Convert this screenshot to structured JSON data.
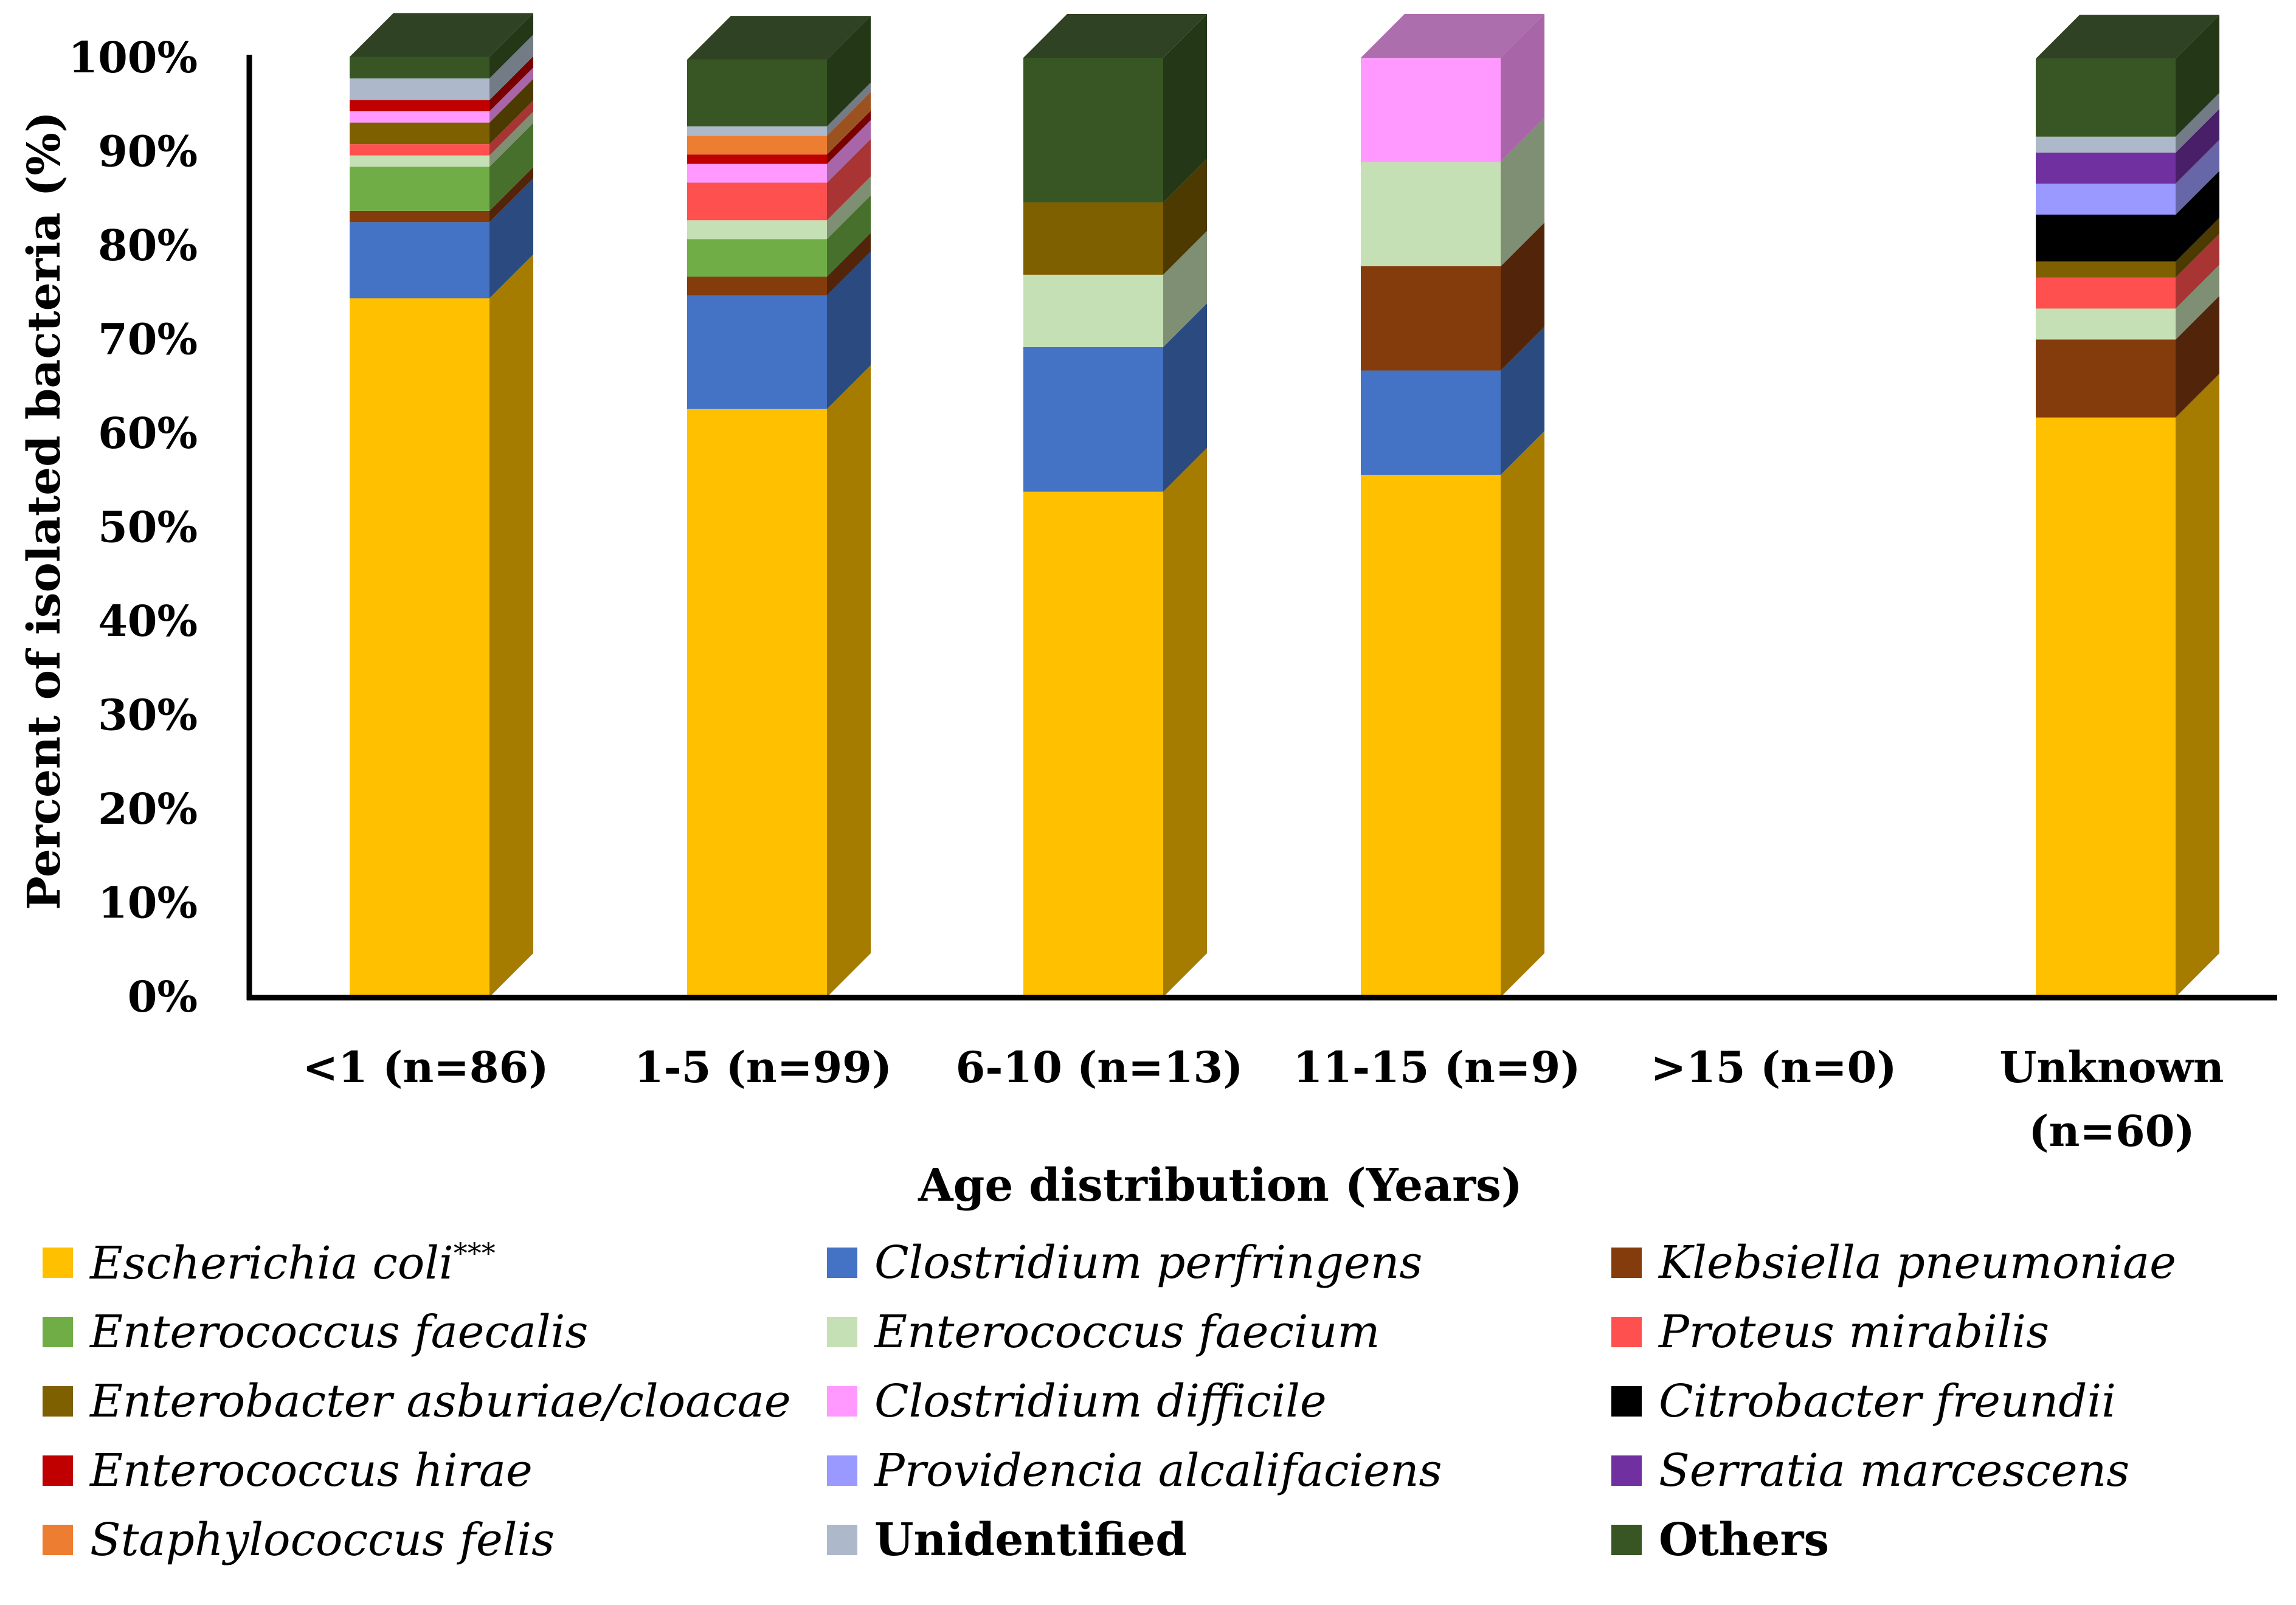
{
  "chart_data": {
    "type": "bar",
    "stacked": true,
    "percent": true,
    "title": "",
    "xlabel": "Age distribution  (Years)",
    "ylabel": "Percent of isolated bacteria (%)",
    "ylim": [
      0,
      100
    ],
    "yticks": [
      "0%",
      "10%",
      "20%",
      "30%",
      "40%",
      "50%",
      "60%",
      "70%",
      "80%",
      "90%",
      "100%"
    ],
    "categories": [
      {
        "line1": "<1 (n=86)",
        "line2": ""
      },
      {
        "line1": "1-5 (n=99)",
        "line2": ""
      },
      {
        "line1": "6-10 (n=13)",
        "line2": ""
      },
      {
        "line1": "11-15 (n=9)",
        "line2": ""
      },
      {
        "line1": ">15 (n=0)",
        "line2": ""
      },
      {
        "line1": "Unknown",
        "line2": "(n=60)"
      }
    ],
    "legend_position": "bottom",
    "series": [
      {
        "name": "Escherichia coli",
        "superscript": "***",
        "italic": true,
        "color": "#FFC000",
        "side": "#A67C00",
        "values": [
          74.4,
          62.6,
          53.8,
          55.6,
          0,
          61.7
        ]
      },
      {
        "name": "Clostridium perfringens",
        "italic": true,
        "color": "#4472C4",
        "side": "#2A4A80",
        "values": [
          8.1,
          12.1,
          15.4,
          11.1,
          0,
          0
        ]
      },
      {
        "name": "Klebsiella pneumoniae",
        "italic": true,
        "color": "#843C0C",
        "side": "#52250A",
        "values": [
          1.2,
          2.0,
          0,
          11.1,
          0,
          8.3
        ]
      },
      {
        "name": "Enterococcus faecalis",
        "italic": true,
        "color": "#70AD47",
        "side": "#46702C",
        "values": [
          4.7,
          4.0,
          0,
          0,
          0,
          0
        ]
      },
      {
        "name": "Enterococcus faecium",
        "italic": true,
        "color": "#C5E0B4",
        "side": "#7E8F73",
        "values": [
          1.2,
          2.0,
          7.7,
          11.1,
          0,
          3.3
        ]
      },
      {
        "name": "Proteus mirabilis",
        "italic": true,
        "color": "#FF5050",
        "side": "#A83434",
        "values": [
          1.2,
          4.0,
          0,
          0,
          0,
          3.3
        ]
      },
      {
        "name": "Enterobacter asburiae/cloacae",
        "italic": true,
        "color": "#7F6000",
        "side": "#4D3A00",
        "values": [
          2.3,
          0,
          7.7,
          0,
          0,
          1.7
        ]
      },
      {
        "name": "Clostridium difficile",
        "italic": true,
        "color": "#FF99FF",
        "side": "#A866A8",
        "values": [
          1.2,
          2.0,
          0,
          11.1,
          0,
          0
        ]
      },
      {
        "name": "Citrobacter freundii",
        "italic": true,
        "color": "#000000",
        "side": "#000000",
        "values": [
          0,
          0,
          0,
          0,
          0,
          5.0
        ]
      },
      {
        "name": "Enterococcus hirae",
        "italic": true,
        "color": "#C00000",
        "side": "#7A0000",
        "values": [
          1.2,
          1.0,
          0,
          0,
          0,
          0
        ]
      },
      {
        "name": "Providencia alcalifaciens",
        "italic": true,
        "color": "#9999FF",
        "side": "#6666A8",
        "values": [
          0,
          0,
          0,
          0,
          0,
          3.3
        ]
      },
      {
        "name": "Serratia marcescens",
        "italic": true,
        "color": "#7030A0",
        "side": "#4A1F6A",
        "values": [
          0,
          0,
          0,
          0,
          0,
          3.3
        ]
      },
      {
        "name": "Staphylococcus felis",
        "italic": true,
        "color": "#ED7D31",
        "side": "#9C5220",
        "values": [
          0,
          2.0,
          0,
          0,
          0,
          0
        ]
      },
      {
        "name": "Unidentified",
        "italic": false,
        "color": "#ADB9CA",
        "side": "#737B86",
        "values": [
          2.3,
          1.0,
          0,
          0,
          0,
          1.7
        ]
      },
      {
        "name": "Others",
        "italic": false,
        "color": "#375623",
        "side": "#243817",
        "values": [
          2.3,
          7.1,
          15.4,
          0,
          0,
          8.3
        ]
      }
    ]
  }
}
